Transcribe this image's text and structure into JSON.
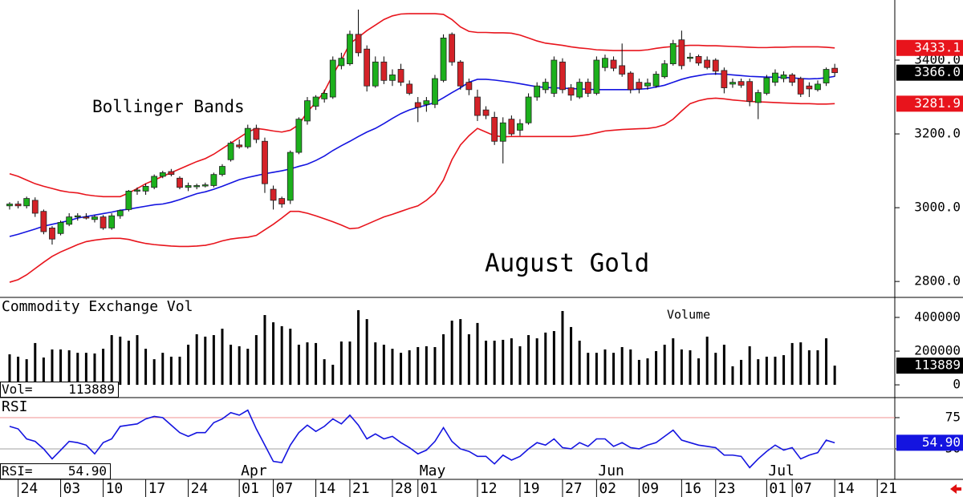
{
  "chart_data": [
    {
      "type": "candlestick",
      "annotations": [
        "Bollinger Bands",
        "August Gold"
      ],
      "up_color": "#1cb01c",
      "down_color": "#d42228",
      "open": [
        3005,
        3010,
        3005,
        3020,
        2990,
        2945,
        2930,
        2955,
        2975,
        2975,
        2968,
        2975,
        2945,
        2978,
        2995,
        3045,
        3045,
        3055,
        3085,
        3098,
        3080,
        3055,
        3058,
        3060,
        3060,
        3090,
        3130,
        3170,
        3165,
        3215,
        3180,
        3050,
        3025,
        3020,
        3150,
        3235,
        3275,
        3295,
        3300,
        3385,
        3390,
        3470,
        3430,
        3330,
        3395,
        3345,
        3375,
        3335,
        3285,
        3280,
        3280,
        3345,
        3470,
        3395,
        3340,
        3300,
        3265,
        3245,
        3180,
        3240,
        3210,
        3230,
        3300,
        3320,
        3310,
        3395,
        3325,
        3300,
        3340,
        3310,
        3380,
        3400,
        3385,
        3365,
        3340,
        3330,
        3330,
        3355,
        3390,
        3455,
        3405,
        3410,
        3400,
        3400,
        3372,
        3335,
        3342,
        3342,
        3285,
        3310,
        3340,
        3350,
        3360,
        3350,
        3330,
        3320,
        3338,
        3378
      ],
      "high": [
        3015,
        3018,
        3030,
        3028,
        2995,
        2950,
        2965,
        2985,
        2985,
        2985,
        2980,
        2980,
        2985,
        2995,
        3048,
        3055,
        3065,
        3090,
        3100,
        3105,
        3085,
        3068,
        3065,
        3068,
        3095,
        3118,
        3180,
        3185,
        3225,
        3225,
        3190,
        3060,
        3030,
        3155,
        3245,
        3300,
        3305,
        3320,
        3410,
        3420,
        3480,
        3537,
        3440,
        3410,
        3410,
        3375,
        3390,
        3345,
        3300,
        3300,
        3360,
        3470,
        3475,
        3400,
        3350,
        3320,
        3275,
        3260,
        3245,
        3250,
        3240,
        3310,
        3340,
        3350,
        3410,
        3405,
        3335,
        3350,
        3350,
        3410,
        3415,
        3410,
        3445,
        3370,
        3350,
        3350,
        3370,
        3400,
        3455,
        3480,
        3420,
        3415,
        3410,
        3405,
        3380,
        3350,
        3350,
        3350,
        3320,
        3360,
        3375,
        3370,
        3365,
        3355,
        3340,
        3345,
        3380,
        3390
      ],
      "low": [
        2995,
        2998,
        2998,
        2975,
        2928,
        2900,
        2925,
        2950,
        2965,
        2968,
        2960,
        2940,
        2940,
        2970,
        2990,
        3035,
        3035,
        3050,
        3080,
        3085,
        3050,
        3045,
        3050,
        3055,
        3055,
        3085,
        3125,
        3160,
        3160,
        3175,
        3040,
        2995,
        3000,
        3010,
        3145,
        3225,
        3265,
        3285,
        3295,
        3375,
        3385,
        3410,
        3315,
        3325,
        3335,
        3330,
        3330,
        3305,
        3232,
        3260,
        3270,
        3340,
        3385,
        3320,
        3305,
        3235,
        3240,
        3170,
        3120,
        3195,
        3195,
        3225,
        3290,
        3310,
        3300,
        3310,
        3290,
        3295,
        3300,
        3305,
        3370,
        3370,
        3355,
        3310,
        3310,
        3320,
        3325,
        3350,
        3385,
        3375,
        3395,
        3385,
        3375,
        3360,
        3310,
        3325,
        3325,
        3275,
        3240,
        3305,
        3330,
        3340,
        3330,
        3300,
        3300,
        3315,
        3330,
        3355
      ],
      "close": [
        3010,
        3005,
        3025,
        2985,
        2935,
        2915,
        2960,
        2975,
        2978,
        2973,
        2975,
        2945,
        2978,
        2992,
        3045,
        3048,
        3058,
        3085,
        3095,
        3090,
        3055,
        3060,
        3060,
        3062,
        3090,
        3112,
        3175,
        3165,
        3215,
        3185,
        3065,
        3020,
        3010,
        3150,
        3240,
        3290,
        3300,
        3310,
        3400,
        3405,
        3470,
        3420,
        3330,
        3395,
        3345,
        3360,
        3340,
        3310,
        3272,
        3290,
        3350,
        3460,
        3395,
        3330,
        3320,
        3250,
        3250,
        3180,
        3230,
        3200,
        3228,
        3300,
        3330,
        3340,
        3400,
        3320,
        3305,
        3340,
        3310,
        3400,
        3405,
        3378,
        3362,
        3320,
        3322,
        3338,
        3362,
        3390,
        3445,
        3385,
        3408,
        3392,
        3380,
        3370,
        3325,
        3340,
        3332,
        3288,
        3312,
        3352,
        3365,
        3360,
        3340,
        3308,
        3322,
        3335,
        3375,
        3366.0
      ],
      "last_label": "3366.0",
      "bands": {
        "upper": {
          "color": "#e8141c",
          "values": [
            3092,
            3085,
            3075,
            3065,
            3058,
            3052,
            3046,
            3042,
            3040,
            3035,
            3032,
            3030,
            3030,
            3030,
            3040,
            3052,
            3065,
            3075,
            3085,
            3095,
            3105,
            3115,
            3125,
            3133,
            3145,
            3160,
            3175,
            3190,
            3205,
            3215,
            3212,
            3208,
            3205,
            3210,
            3225,
            3260,
            3285,
            3315,
            3360,
            3400,
            3445,
            3462,
            3480,
            3495,
            3510,
            3520,
            3525,
            3526,
            3526,
            3526,
            3526,
            3524,
            3510,
            3490,
            3478,
            3475,
            3475,
            3474,
            3474,
            3473,
            3468,
            3460,
            3452,
            3446,
            3443,
            3440,
            3436,
            3433,
            3431,
            3428,
            3427,
            3426,
            3426,
            3426,
            3426,
            3428,
            3432,
            3435,
            3437,
            3439,
            3440,
            3440,
            3439,
            3439,
            3438,
            3437,
            3436,
            3435,
            3434,
            3434,
            3435,
            3435,
            3436,
            3436,
            3436,
            3436,
            3435,
            3433.1
          ]
        },
        "middle": {
          "color": "#1414e0",
          "values": [
            2922,
            2928,
            2935,
            2942,
            2950,
            2955,
            2960,
            2965,
            2972,
            2976,
            2980,
            2984,
            2988,
            2993,
            2996,
            3000,
            3004,
            3008,
            3010,
            3015,
            3022,
            3030,
            3038,
            3043,
            3050,
            3058,
            3067,
            3076,
            3082,
            3087,
            3092,
            3096,
            3100,
            3105,
            3112,
            3118,
            3128,
            3140,
            3155,
            3168,
            3180,
            3193,
            3205,
            3215,
            3228,
            3242,
            3255,
            3265,
            3272,
            3278,
            3285,
            3298,
            3312,
            3325,
            3340,
            3348,
            3348,
            3346,
            3343,
            3340,
            3336,
            3332,
            3328,
            3326,
            3325,
            3324,
            3323,
            3322,
            3321,
            3320,
            3320,
            3320,
            3320,
            3320,
            3321,
            3323,
            3327,
            3332,
            3340,
            3348,
            3354,
            3358,
            3362,
            3363,
            3362,
            3360,
            3358,
            3356,
            3355,
            3354,
            3354,
            3353,
            3352,
            3350,
            3349,
            3350,
            3352,
            3356
          ]
        },
        "lower": {
          "color": "#e8141c",
          "values": [
            2798,
            2805,
            2818,
            2835,
            2852,
            2868,
            2880,
            2890,
            2900,
            2908,
            2912,
            2915,
            2917,
            2917,
            2914,
            2908,
            2903,
            2900,
            2898,
            2896,
            2895,
            2895,
            2896,
            2898,
            2903,
            2910,
            2915,
            2918,
            2920,
            2925,
            2940,
            2955,
            2972,
            2990,
            2990,
            2985,
            2978,
            2970,
            2962,
            2953,
            2943,
            2945,
            2955,
            2965,
            2975,
            2982,
            2990,
            2998,
            3005,
            3020,
            3040,
            3075,
            3130,
            3170,
            3195,
            3215,
            3205,
            3195,
            3192,
            3193,
            3193,
            3193,
            3193,
            3193,
            3193,
            3193,
            3193,
            3195,
            3198,
            3203,
            3208,
            3210,
            3212,
            3213,
            3214,
            3215,
            3218,
            3225,
            3240,
            3262,
            3282,
            3290,
            3295,
            3297,
            3295,
            3292,
            3290,
            3288,
            3287,
            3286,
            3285,
            3284,
            3283,
            3282,
            3282,
            3281,
            3281,
            3281.9
          ]
        }
      },
      "ylim": [
        2759,
        3563
      ],
      "yticks": [
        {
          "value": 2800,
          "label": "2800.0"
        },
        {
          "value": 3000,
          "label": "3000.0"
        },
        {
          "value": 3200,
          "label": "3200.0"
        },
        {
          "value": 3400,
          "label": "3400.0"
        }
      ]
    },
    {
      "type": "bar",
      "title": "Commodity Exchange Vol",
      "label": "Volume",
      "readout_label": "Vol=",
      "color": "#000000",
      "values": [
        181000,
        167000,
        152000,
        248000,
        162000,
        210000,
        210000,
        205000,
        190000,
        190000,
        186000,
        214000,
        295000,
        286000,
        262000,
        295000,
        214000,
        152000,
        190000,
        167000,
        167000,
        238000,
        300000,
        286000,
        295000,
        333000,
        238000,
        229000,
        214000,
        295000,
        414000,
        371000,
        348000,
        333000,
        238000,
        252000,
        248000,
        152000,
        119000,
        257000,
        257000,
        443000,
        390000,
        252000,
        238000,
        214000,
        190000,
        205000,
        224000,
        229000,
        224000,
        300000,
        381000,
        390000,
        300000,
        367000,
        262000,
        262000,
        267000,
        276000,
        229000,
        295000,
        276000,
        310000,
        319000,
        438000,
        343000,
        262000,
        190000,
        190000,
        210000,
        190000,
        224000,
        210000,
        148000,
        157000,
        200000,
        238000,
        276000,
        210000,
        205000,
        157000,
        286000,
        190000,
        238000,
        110000,
        148000,
        229000,
        152000,
        167000,
        167000,
        176000,
        248000,
        252000,
        205000,
        205000,
        276000,
        113889
      ],
      "ylim": [
        -71000,
        514000
      ],
      "yticks": [
        400000,
        200000,
        0
      ]
    },
    {
      "type": "line",
      "title": "RSI",
      "readout_label": "RSI=",
      "last_label": "54.90",
      "color": "#1414e0",
      "values": [
        68,
        66,
        58,
        56,
        50,
        42,
        49,
        56,
        55,
        53,
        46,
        55,
        58,
        68,
        69,
        70,
        74,
        76,
        75,
        69,
        63,
        60,
        63,
        63,
        71,
        74,
        79,
        77,
        81,
        66,
        53,
        40,
        39,
        53,
        63,
        69,
        64,
        68,
        74,
        70,
        77,
        69,
        58,
        62,
        58,
        60,
        55,
        51,
        46,
        49,
        56,
        67,
        56,
        50,
        48,
        44,
        44,
        38,
        45,
        41,
        44,
        50,
        55,
        53,
        58,
        51,
        50,
        55,
        52,
        58,
        58,
        52,
        55,
        51,
        50,
        53,
        55,
        60,
        65,
        57,
        55,
        53,
        52,
        51,
        45,
        45,
        44,
        35,
        42,
        48,
        53,
        49,
        51,
        42,
        45,
        47,
        57,
        54.9
      ],
      "ylim": [
        25.6,
        90.4
      ],
      "yticks": [
        75,
        50
      ],
      "grid": true,
      "grid_colors": [
        "#f09090",
        "#a0a0a0"
      ],
      "xlim": [
        -1.13,
        104.06
      ],
      "xticks": [
        {
          "value": 1,
          "label": "24"
        },
        {
          "value": 6,
          "label": "03"
        },
        {
          "value": 11,
          "label": "10"
        },
        {
          "value": 16,
          "label": "17"
        },
        {
          "value": 21,
          "label": "24"
        },
        {
          "value": 27,
          "label": "01"
        },
        {
          "value": 31,
          "label": "07"
        },
        {
          "value": 36,
          "label": "14"
        },
        {
          "value": 40,
          "label": "21"
        },
        {
          "value": 45,
          "label": "28"
        },
        {
          "value": 48,
          "label": "01"
        },
        {
          "value": 55,
          "label": "12"
        },
        {
          "value": 60,
          "label": "19"
        },
        {
          "value": 65,
          "label": "27"
        },
        {
          "value": 69,
          "label": "02"
        },
        {
          "value": 74,
          "label": "09"
        },
        {
          "value": 79,
          "label": "16"
        },
        {
          "value": 83,
          "label": "23"
        },
        {
          "value": 89,
          "label": "01"
        },
        {
          "value": 92,
          "label": "07"
        },
        {
          "value": 97,
          "label": "14"
        },
        {
          "value": 102,
          "label": "21"
        }
      ],
      "month_ticks": [
        {
          "value": 27,
          "label": "Apr"
        },
        {
          "value": 48,
          "label": "May"
        },
        {
          "value": 69,
          "label": "Jun"
        },
        {
          "value": 89,
          "label": "Jul"
        }
      ]
    }
  ]
}
